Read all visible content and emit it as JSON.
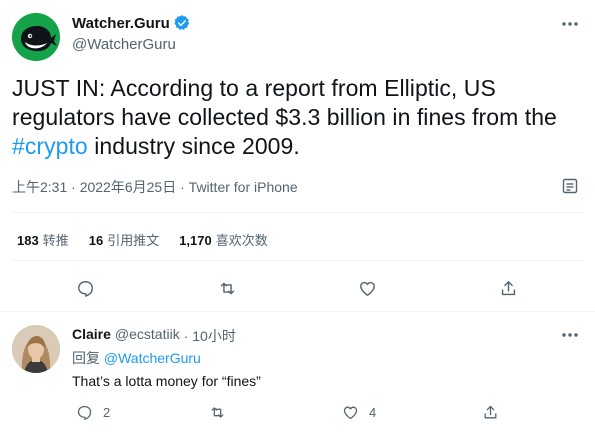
{
  "tweet": {
    "display_name": "Watcher.Guru",
    "handle": "@WatcherGuru",
    "text_before": "JUST IN: According to a report from Elliptic, US regulators have collected $3.3 billion in fines from the ",
    "hashtag": "#crypto",
    "text_after": " industry since 2009.",
    "time": "上午2:31",
    "date": "2022年6月25日",
    "source": "Twitter for iPhone",
    "separator": " · "
  },
  "stats": {
    "retweets_count": "183",
    "retweets_label": "转推",
    "quotes_count": "16",
    "quotes_label": "引用推文",
    "likes_count": "1,170",
    "likes_label": "喜欢次数"
  },
  "reply": {
    "display_name": "Claire",
    "handle": "@ecstatiik",
    "time_ago": "· 10小时",
    "replying_prefix": "回复 ",
    "replying_to": "@WatcherGuru",
    "text": "That’s a lotta money for “fines”",
    "reply_count": "2",
    "retweet_count": "",
    "like_count": "4"
  },
  "colors": {
    "accent": "#1d9bf0",
    "brand_avatar": "#15a34a",
    "secondary_text": "#536471"
  }
}
